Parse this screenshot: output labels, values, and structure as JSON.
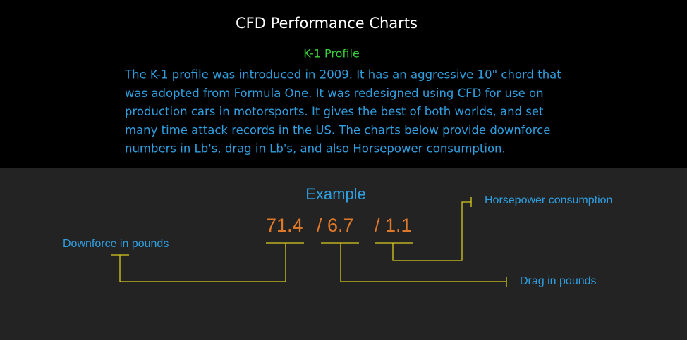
{
  "header": {
    "title": "CFD Performance Charts",
    "subtitle": "K-1 Profile",
    "paragraph_lines": [
      "The K-1 profile was introduced in 2009. It has an aggressive 10\" chord that",
      "was adopted from Formula One. It was redesigned using CFD for use on",
      "production cars in motorsports. It gives the best of both worlds, and set",
      "many time attack records in the US. The charts below provide downforce",
      "numbers in Lb's, drag in Lb's, and also Horsepower consumption."
    ]
  },
  "example": {
    "title": "Example",
    "values": [
      "71.4",
      "/ 6.7",
      "/ 1.1"
    ],
    "labels": {
      "downforce": "Downforce in pounds",
      "drag": "Drag in pounds",
      "horsepower": "Horsepower consumption"
    }
  }
}
